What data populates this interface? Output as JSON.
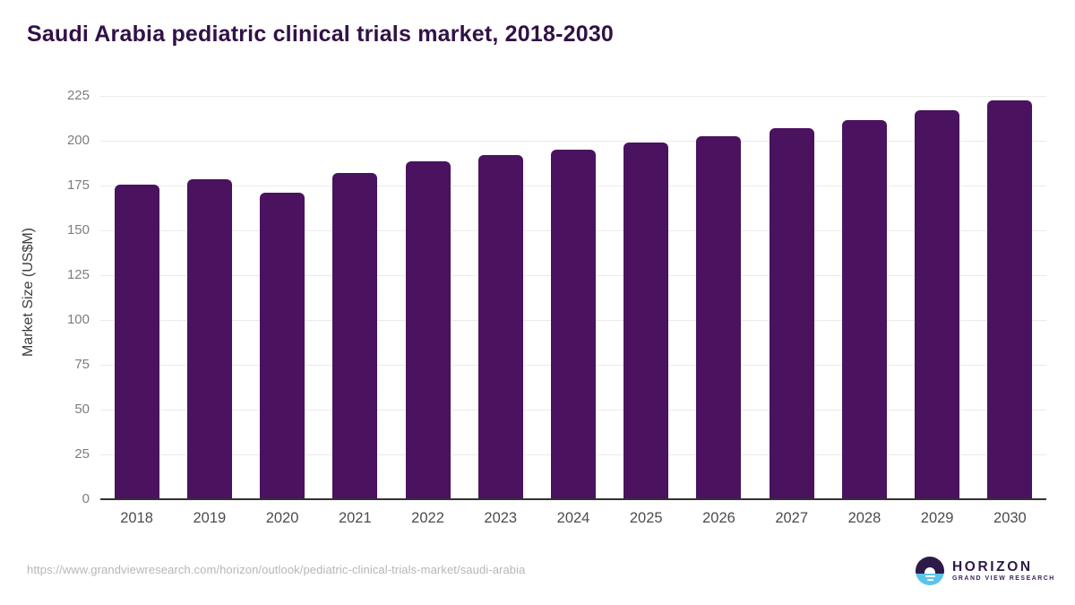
{
  "chart_data": {
    "type": "bar",
    "title": "Saudi Arabia pediatric clinical trials market, 2018-2030",
    "categories": [
      "2018",
      "2019",
      "2020",
      "2021",
      "2022",
      "2023",
      "2024",
      "2025",
      "2026",
      "2027",
      "2028",
      "2029",
      "2030"
    ],
    "values": [
      175.5,
      178.5,
      170.8,
      181.8,
      188.7,
      192.0,
      195.0,
      199.0,
      202.5,
      207.0,
      211.5,
      216.8,
      222.5
    ],
    "xlabel": "",
    "ylabel": "Market Size (US$M)",
    "ylim": [
      0,
      231
    ],
    "yticks": [
      0,
      25,
      50,
      75,
      100,
      125,
      150,
      175,
      200,
      225
    ],
    "grid": true,
    "legend": "none",
    "bar_color": "#4A125F"
  },
  "colors": {
    "title_text": "#321147",
    "bar": "#4A125F",
    "gridline": "#eaeaea",
    "axis_line": "#333333",
    "y_tick_text": "#7d7d7d",
    "x_tick_text": "#4c4c4c",
    "url_text": "#b6b6b6",
    "logo_purple": "#2E1A47",
    "logo_blue": "#5BC4EB"
  },
  "footer": {
    "source_url": "https://www.grandviewresearch.com/horizon/outlook/pediatric-clinical-trials-market/saudi-arabia",
    "logo": {
      "title": "HORIZON",
      "subtitle": "GRAND VIEW RESEARCH"
    }
  }
}
